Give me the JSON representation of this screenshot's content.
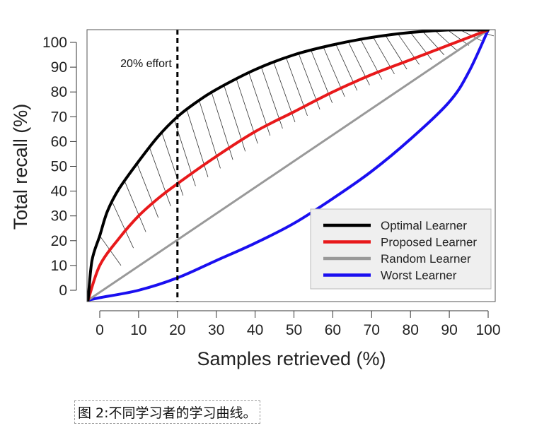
{
  "chart_data": {
    "type": "line",
    "xlabel": "Samples retrieved (%)",
    "ylabel": "Total recall (%)",
    "x_ticks": [
      "0",
      "10",
      "20",
      "30",
      "40",
      "50",
      "60",
      "70",
      "80",
      "90",
      "100"
    ],
    "y_ticks": [
      "0",
      "10",
      "20",
      "30",
      "40",
      "50",
      "60",
      "70",
      "80",
      "90",
      "100"
    ],
    "xlim": [
      -3,
      100
    ],
    "ylim": [
      -4,
      105
    ],
    "grid": false,
    "legend_position": "bottom-right",
    "annotation": {
      "text": "20% effort",
      "x": 20
    },
    "shaded_between": [
      "Optimal Learner",
      "Proposed Learner"
    ],
    "series": [
      {
        "name": "Optimal Learner",
        "color": "#000000",
        "x": [
          -3,
          -2,
          0,
          2,
          5,
          10,
          15,
          20,
          25,
          30,
          40,
          50,
          60,
          70,
          80,
          90,
          100
        ],
        "y": [
          -4,
          12,
          22,
          32,
          41,
          52,
          62,
          70,
          76,
          81,
          89,
          95,
          99,
          102,
          104,
          105,
          105
        ]
      },
      {
        "name": "Proposed Learner",
        "color": "#e8191b",
        "x": [
          -3,
          0,
          5,
          10,
          15,
          20,
          30,
          40,
          50,
          60,
          70,
          80,
          90,
          100
        ],
        "y": [
          -4,
          10,
          21,
          30,
          37,
          43,
          54,
          64,
          72,
          80,
          87,
          93,
          99,
          105
        ]
      },
      {
        "name": "Random Learner",
        "color": "#999999",
        "x": [
          -3,
          100
        ],
        "y": [
          -4,
          105
        ]
      },
      {
        "name": "Worst Learner",
        "color": "#1a0ff0",
        "x": [
          -3,
          0,
          10,
          20,
          30,
          40,
          50,
          60,
          70,
          80,
          90,
          95,
          100
        ],
        "y": [
          -4,
          -3,
          0,
          5,
          12,
          19,
          27,
          37,
          48,
          61,
          76,
          88,
          105
        ]
      }
    ]
  },
  "caption": "图 2:不同学习者的学习曲线。"
}
